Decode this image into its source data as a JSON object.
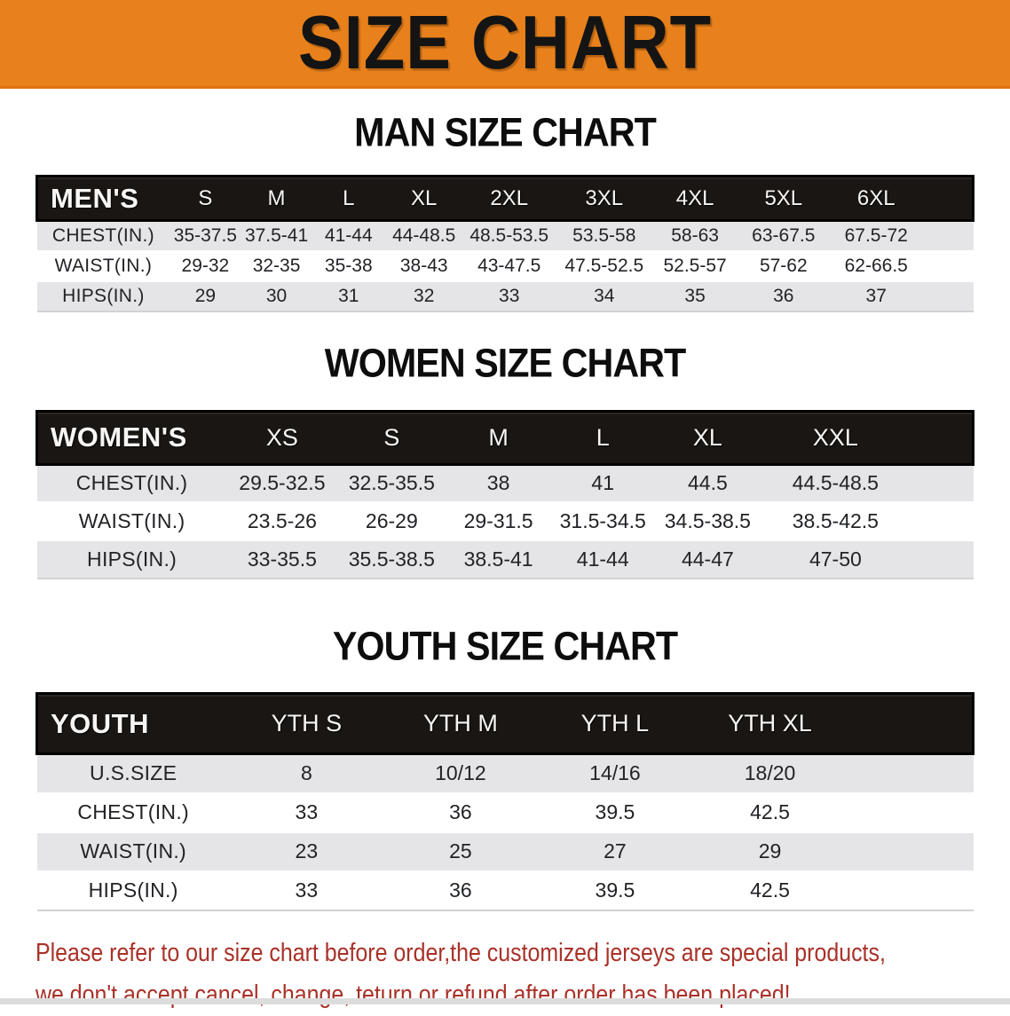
{
  "banner": {
    "title": "SIZE CHART"
  },
  "sections": [
    {
      "heading": "MAN SIZE CHART",
      "table": {
        "label": "MEN'S",
        "columns": [
          "S",
          "M",
          "L",
          "XL",
          "2XL",
          "3XL",
          "4XL",
          "5XL",
          "6XL"
        ],
        "rows": [
          {
            "label": "CHEST(IN.)",
            "values": [
              "35-37.5",
              "37.5-41",
              "41-44",
              "44-48.5",
              "48.5-53.5",
              "53.5-58",
              "58-63",
              "63-67.5",
              "67.5-72"
            ]
          },
          {
            "label": "WAIST(IN.)",
            "values": [
              "29-32",
              "32-35",
              "35-38",
              "38-43",
              "43-47.5",
              "47.5-52.5",
              "52.5-57",
              "57-62",
              "62-66.5"
            ]
          },
          {
            "label": "HIPS(IN.)",
            "values": [
              "29",
              "30",
              "31",
              "32",
              "33",
              "34",
              "35",
              "36",
              "37"
            ]
          }
        ]
      }
    },
    {
      "heading": "WOMEN SIZE CHART",
      "table": {
        "label": "WOMEN'S",
        "columns": [
          "XS",
          "S",
          "M",
          "L",
          "XL",
          "XXL"
        ],
        "rows": [
          {
            "label": "CHEST(IN.)",
            "values": [
              "29.5-32.5",
              "32.5-35.5",
              "38",
              "41",
              "44.5",
              "44.5-48.5"
            ]
          },
          {
            "label": "WAIST(IN.)",
            "values": [
              "23.5-26",
              "26-29",
              "29-31.5",
              "31.5-34.5",
              "34.5-38.5",
              "38.5-42.5"
            ]
          },
          {
            "label": "HIPS(IN.)",
            "values": [
              "33-35.5",
              "35.5-38.5",
              "38.5-41",
              "41-44",
              "44-47",
              "47-50"
            ]
          }
        ]
      }
    },
    {
      "heading": "YOUTH SIZE CHART",
      "table": {
        "label": "YOUTH",
        "columns": [
          "YTH S",
          "YTH M",
          "YTH L",
          "YTH XL"
        ],
        "rows": [
          {
            "label": "U.S.SIZE",
            "values": [
              "8",
              "10/12",
              "14/16",
              "18/20"
            ]
          },
          {
            "label": "CHEST(IN.)",
            "values": [
              "33",
              "36",
              "39.5",
              "42.5"
            ]
          },
          {
            "label": "WAIST(IN.)",
            "values": [
              "23",
              "25",
              "27",
              "29"
            ]
          },
          {
            "label": "HIPS(IN.)",
            "values": [
              "33",
              "36",
              "39.5",
              "42.5"
            ]
          }
        ]
      }
    }
  ],
  "disclaimer": {
    "line1": "Please refer to our size chart before order,the customized jerseys are special products,",
    "line2": "we don't accept cancel, change, teturn or refund after order has been placed!"
  },
  "colors": {
    "banner_bg": "#E8811C",
    "header_bar": "#1A1613",
    "row_alt": "#E5E5E7",
    "disclaimer_red": "#A93128"
  }
}
